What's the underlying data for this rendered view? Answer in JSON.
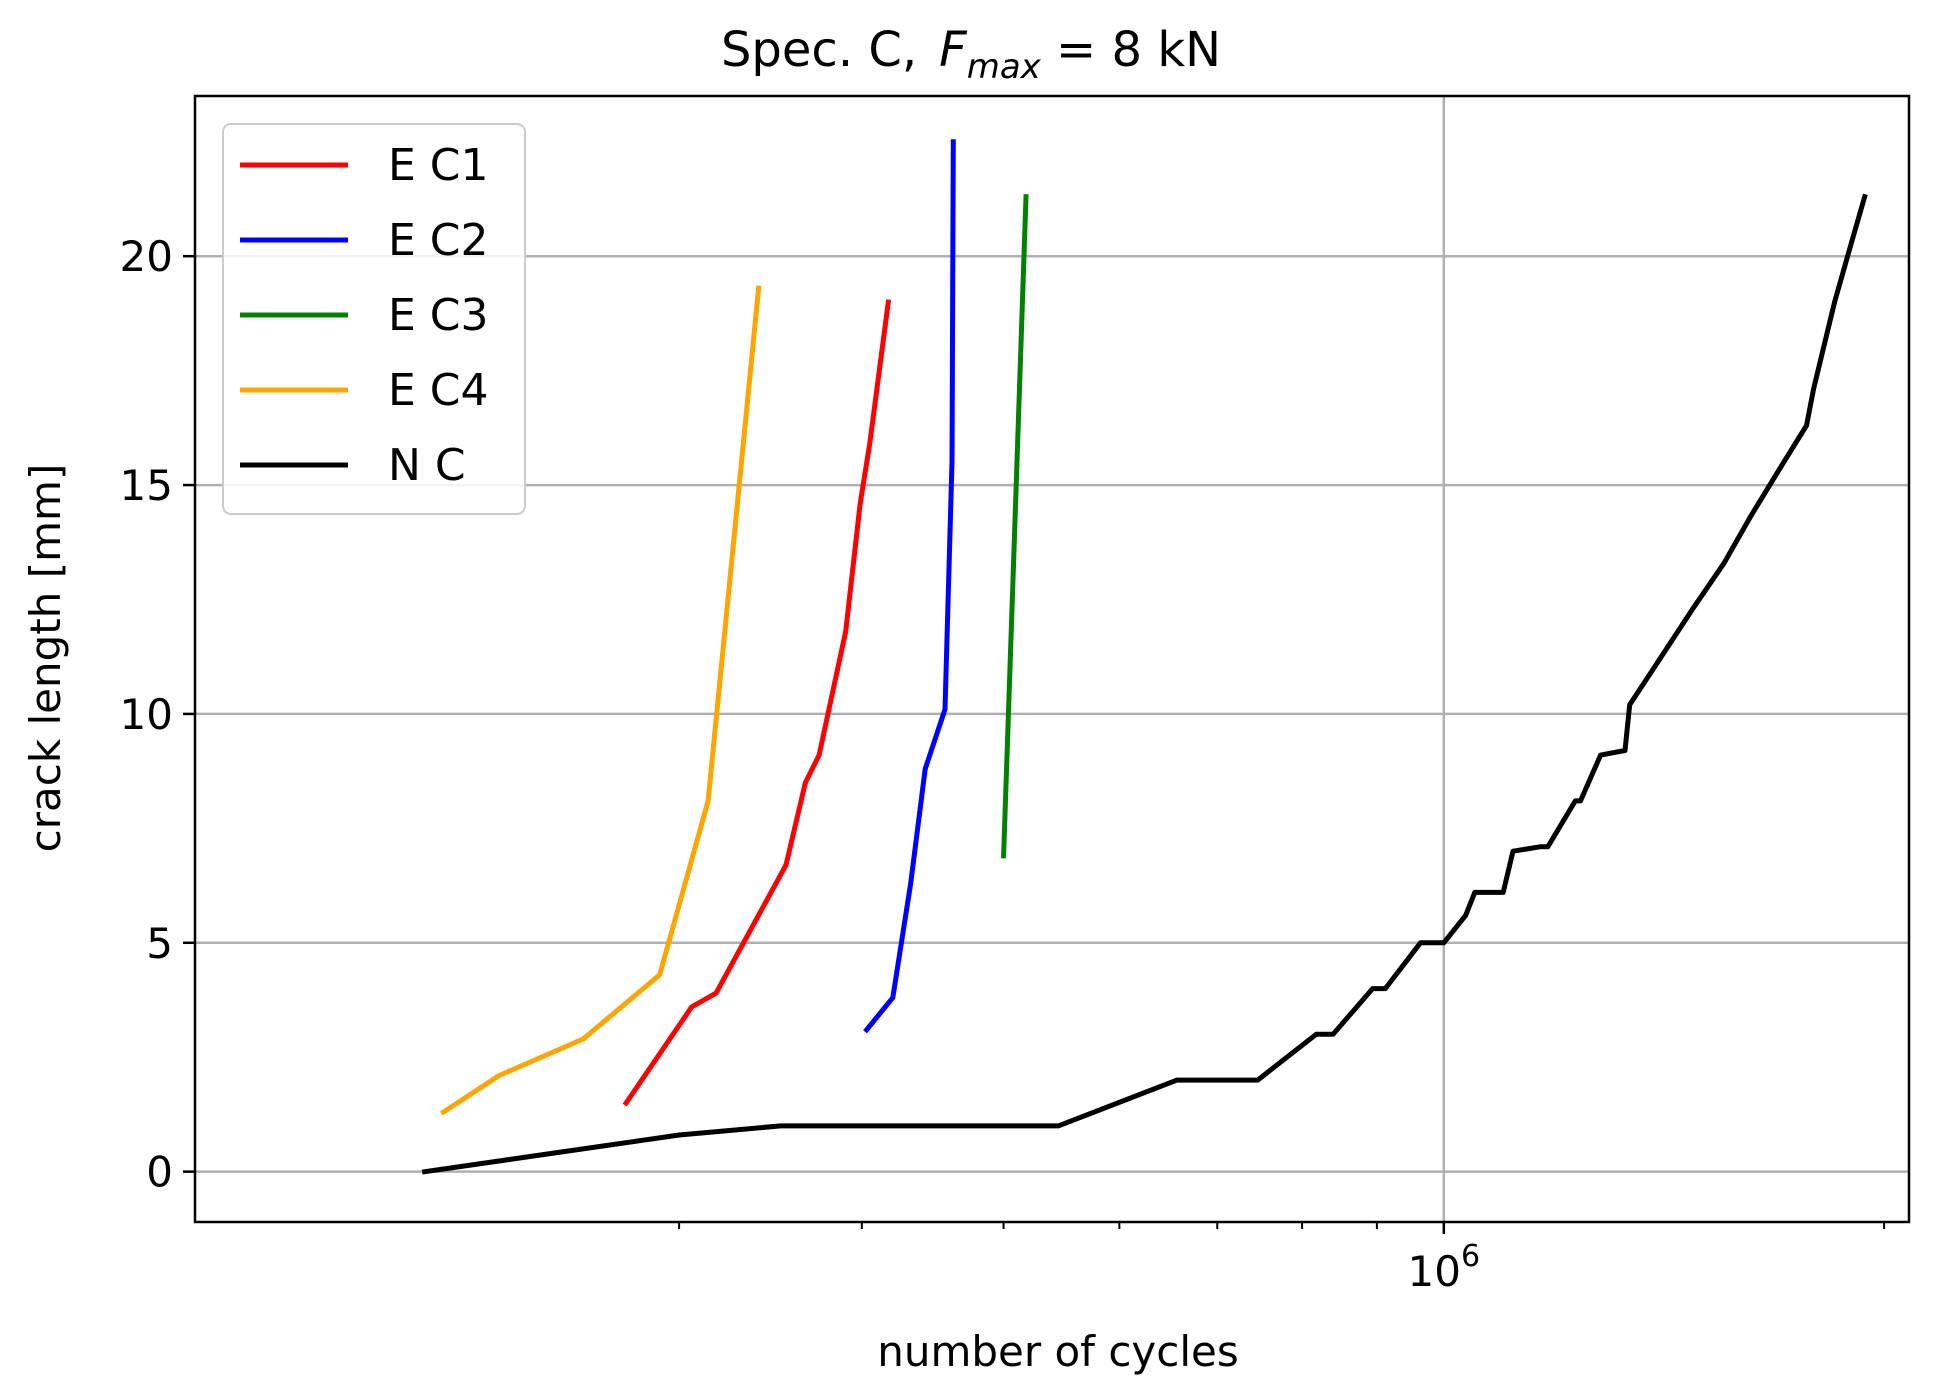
{
  "chart_data": {
    "type": "line",
    "title": "Spec. C,",
    "title_formula": {
      "var": "F",
      "sub": "max",
      "rest": " = 8 kN"
    },
    "xlabel": "number of cycles",
    "ylabel": "crack length [mm]",
    "xscale": "log",
    "xlim": [
      140000,
      2080000
    ],
    "ylim": [
      -1.1,
      23.5
    ],
    "grid": true,
    "legend_position": "upper-left",
    "x_tick_labels": [
      {
        "value": 1000000,
        "base": "10",
        "exp": "6"
      }
    ],
    "x_minor_ticks": [
      300000,
      400000,
      500000,
      600000,
      700000,
      800000,
      900000,
      2000000
    ],
    "y_ticks": [
      0,
      5,
      10,
      15,
      20
    ],
    "y_tick_labels": [
      "0",
      "5",
      "10",
      "15",
      "20"
    ],
    "series": [
      {
        "name": "E C1",
        "color": "#ff0000",
        "x": [
          276000,
          306000,
          318000,
          355000,
          366000,
          374000,
          381000,
          390000,
          399000,
          405000,
          417000
        ],
        "y": [
          1.5,
          3.6,
          3.9,
          6.7,
          8.5,
          9.1,
          10.3,
          11.8,
          14.6,
          15.9,
          19.0
        ]
      },
      {
        "name": "E C2",
        "color": "#0000ff",
        "x": [
          403000,
          420000,
          432000,
          442000,
          456000,
          461000,
          462000
        ],
        "y": [
          3.1,
          3.8,
          6.3,
          8.8,
          10.1,
          15.5,
          22.5
        ]
      },
      {
        "name": "E C3",
        "color": "#008000",
        "x": [
          500000,
          518000
        ],
        "y": [
          6.9,
          21.3
        ]
      },
      {
        "name": "E C4",
        "color": "#ffa500",
        "x": [
          207000,
          226000,
          258000,
          291000,
          314000,
          340000
        ],
        "y": [
          1.3,
          2.1,
          2.9,
          4.3,
          8.1,
          19.3
        ]
      },
      {
        "name": "N C",
        "color": "#000000",
        "x": [
          201000,
          300000,
          352000,
          545000,
          657000,
          746000,
          818000,
          840000,
          894000,
          912000,
          964000,
          1000000,
          1035000,
          1050000,
          1098000,
          1115000,
          1165000,
          1178000,
          1230000,
          1240000,
          1280000,
          1330000,
          1340000,
          1405000,
          1480000,
          1555000,
          1620000,
          1700000,
          1770000,
          1790000,
          1850000,
          1900000,
          1940000
        ],
        "y": [
          0.0,
          0.8,
          1.0,
          1.0,
          2.0,
          2.0,
          3.0,
          3.0,
          4.0,
          4.0,
          5.0,
          5.0,
          5.6,
          6.1,
          6.1,
          7.0,
          7.1,
          7.1,
          8.1,
          8.1,
          9.1,
          9.2,
          10.2,
          11.2,
          12.3,
          13.3,
          14.3,
          15.4,
          16.3,
          17.1,
          19.0,
          20.3,
          21.3
        ]
      }
    ]
  }
}
